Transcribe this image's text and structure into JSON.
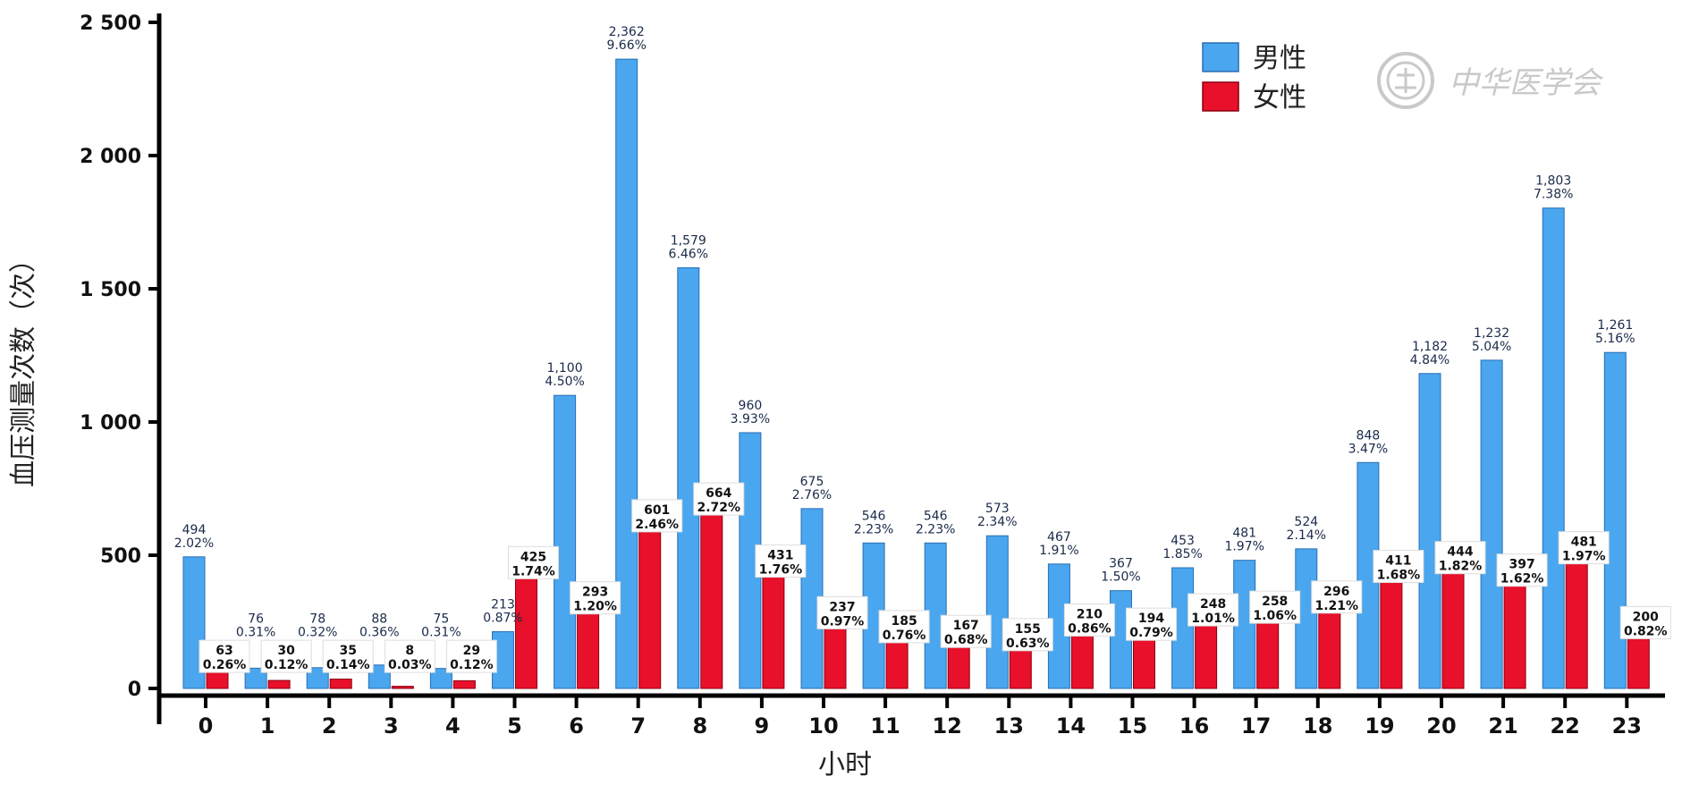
{
  "colors": {
    "male": "#4aa6ee",
    "male_edge": "#2b6fb4",
    "female": "#e8102a",
    "female_edge": "#8a0010",
    "axis": "#000000",
    "watermark": "#c9c9c9"
  },
  "watermark": {
    "text": "中华医学会"
  },
  "chart_data": {
    "type": "bar",
    "xlabel": "小时",
    "ylabel": "血压测量次数（次）",
    "ylim": [
      0,
      2500
    ],
    "yticks": [
      0,
      500,
      1000,
      1500,
      2000,
      2500
    ],
    "ytick_labels": [
      "0",
      "500",
      "1 000",
      "1 500",
      "2 000",
      "2 500"
    ],
    "legend_position": "top-right",
    "categories": [
      "0",
      "1",
      "2",
      "3",
      "4",
      "5",
      "6",
      "7",
      "8",
      "9",
      "10",
      "11",
      "12",
      "13",
      "14",
      "15",
      "16",
      "17",
      "18",
      "19",
      "20",
      "21",
      "22",
      "23"
    ],
    "series": [
      {
        "name": "男性",
        "values": [
          494,
          76,
          78,
          88,
          75,
          213,
          1100,
          2362,
          1579,
          960,
          675,
          546,
          546,
          573,
          467,
          367,
          453,
          481,
          524,
          848,
          1182,
          1232,
          1803,
          1261
        ],
        "value_labels": [
          "494",
          "76",
          "78",
          "88",
          "75",
          "213",
          "1,100",
          "2,362",
          "1,579",
          "960",
          "675",
          "546",
          "546",
          "573",
          "467",
          "367",
          "453",
          "481",
          "524",
          "848",
          "1,182",
          "1,232",
          "1,803",
          "1,261"
        ],
        "percent_labels": [
          "2.02%",
          "0.31%",
          "0.32%",
          "0.36%",
          "0.31%",
          "0.87%",
          "4.50%",
          "9.66%",
          "6.46%",
          "3.93%",
          "2.76%",
          "2.23%",
          "2.23%",
          "2.34%",
          "1.91%",
          "1.50%",
          "1.85%",
          "1.97%",
          "2.14%",
          "3.47%",
          "4.84%",
          "5.04%",
          "7.38%",
          "5.16%"
        ]
      },
      {
        "name": "女性",
        "values": [
          63,
          30,
          35,
          8,
          29,
          425,
          293,
          601,
          664,
          431,
          237,
          185,
          167,
          155,
          210,
          194,
          248,
          258,
          296,
          411,
          444,
          397,
          481,
          200
        ],
        "value_labels": [
          "63",
          "30",
          "35",
          "8",
          "29",
          "425",
          "293",
          "601",
          "664",
          "431",
          "237",
          "185",
          "167",
          "155",
          "210",
          "194",
          "248",
          "258",
          "296",
          "411",
          "444",
          "397",
          "481",
          "200"
        ],
        "percent_labels": [
          "0.26%",
          "0.12%",
          "0.14%",
          "0.03%",
          "0.12%",
          "1.74%",
          "1.20%",
          "2.46%",
          "2.72%",
          "1.76%",
          "0.97%",
          "0.76%",
          "0.68%",
          "0.63%",
          "0.86%",
          "0.79%",
          "1.01%",
          "1.06%",
          "1.21%",
          "1.68%",
          "1.82%",
          "1.62%",
          "1.97%",
          "0.82%"
        ]
      }
    ]
  }
}
